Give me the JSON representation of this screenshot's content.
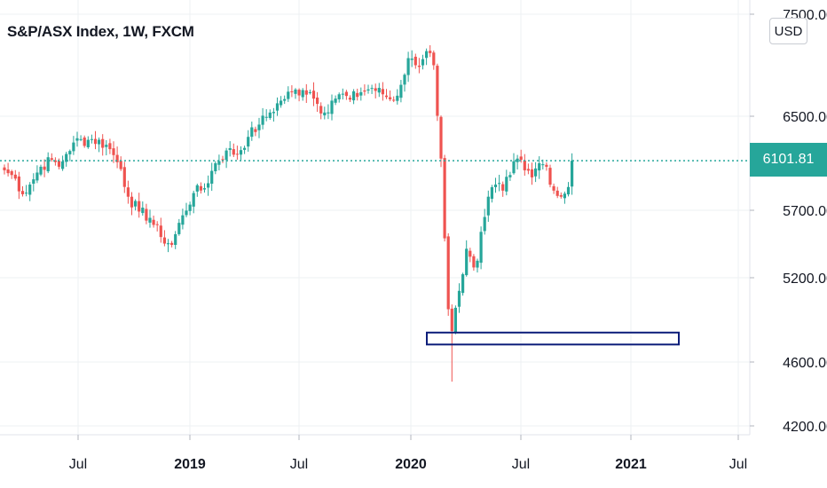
{
  "header": {
    "title": "S&P/ASX Index, 1W, FXCM",
    "currency": "USD"
  },
  "colors": {
    "up": "#26a69a",
    "down": "#ef5350",
    "zone_border": "#0d1d7a",
    "grid": "#eef0f3",
    "last_price_line": "#26a69a"
  },
  "last_price": "6101.81",
  "chart_data": {
    "type": "candlestick",
    "title": "S&P/ASX Index, 1W, FXCM",
    "y_axis": {
      "ticks": [
        "7500.00",
        "6500.00",
        "5700.00",
        "5200.00",
        "4600.00",
        "4200.00"
      ],
      "range": [
        4150,
        7600
      ],
      "scale": "log",
      "side": "right"
    },
    "x_axis": {
      "ticks": [
        {
          "label": "Jul",
          "bold": false
        },
        {
          "label": "2019",
          "bold": true
        },
        {
          "label": "Jul",
          "bold": false
        },
        {
          "label": "2020",
          "bold": true
        },
        {
          "label": "Jul",
          "bold": false
        },
        {
          "label": "2021",
          "bold": true
        },
        {
          "label": "Jul",
          "bold": false
        }
      ]
    },
    "grid": true,
    "support_zone": {
      "from": 4710,
      "to": 4790
    },
    "path_anchors": [
      [
        0,
        6020
      ],
      [
        3,
        5950
      ],
      [
        5,
        5820
      ],
      [
        7,
        5900
      ],
      [
        10,
        6050
      ],
      [
        13,
        6110
      ],
      [
        15,
        6050
      ],
      [
        17,
        6160
      ],
      [
        19,
        6260
      ],
      [
        24,
        6290
      ],
      [
        28,
        6240
      ],
      [
        30,
        6150
      ],
      [
        32,
        6030
      ],
      [
        34,
        5800
      ],
      [
        37,
        5680
      ],
      [
        40,
        5630
      ],
      [
        43,
        5480
      ],
      [
        46,
        5420
      ],
      [
        49,
        5650
      ],
      [
        52,
        5830
      ],
      [
        55,
        5870
      ],
      [
        58,
        6080
      ],
      [
        61,
        6190
      ],
      [
        64,
        6160
      ],
      [
        67,
        6310
      ],
      [
        70,
        6420
      ],
      [
        73,
        6530
      ],
      [
        76,
        6640
      ],
      [
        79,
        6720
      ],
      [
        82,
        6740
      ],
      [
        84,
        6720
      ],
      [
        86,
        6610
      ],
      [
        88,
        6530
      ],
      [
        90,
        6640
      ],
      [
        92,
        6700
      ],
      [
        95,
        6650
      ],
      [
        98,
        6720
      ],
      [
        101,
        6760
      ],
      [
        104,
        6700
      ],
      [
        107,
        6640
      ],
      [
        109,
        6790
      ],
      [
        111,
        7050
      ],
      [
        113,
        6980
      ],
      [
        115,
        7040
      ],
      [
        116,
        7120
      ],
      [
        117,
        7100
      ],
      [
        118,
        6980
      ],
      [
        119,
        6500
      ],
      [
        120,
        6120
      ],
      [
        121,
        5470
      ],
      [
        122,
        4950
      ],
      [
        123,
        4800
      ],
      [
        124,
        4960
      ],
      [
        125,
        5080
      ],
      [
        126,
        5200
      ],
      [
        127,
        5390
      ],
      [
        128,
        5330
      ],
      [
        129,
        5250
      ],
      [
        130,
        5300
      ],
      [
        131,
        5520
      ],
      [
        133,
        5800
      ],
      [
        135,
        5900
      ],
      [
        137,
        5850
      ],
      [
        139,
        5980
      ],
      [
        141,
        6120
      ],
      [
        143,
        6020
      ],
      [
        145,
        5960
      ],
      [
        147,
        6080
      ],
      [
        149,
        6050
      ],
      [
        151,
        5850
      ],
      [
        153,
        5800
      ],
      [
        155,
        5880
      ],
      [
        156,
        6101.81
      ]
    ],
    "lows": [
      {
        "i": 123,
        "v": 4470
      }
    ]
  }
}
